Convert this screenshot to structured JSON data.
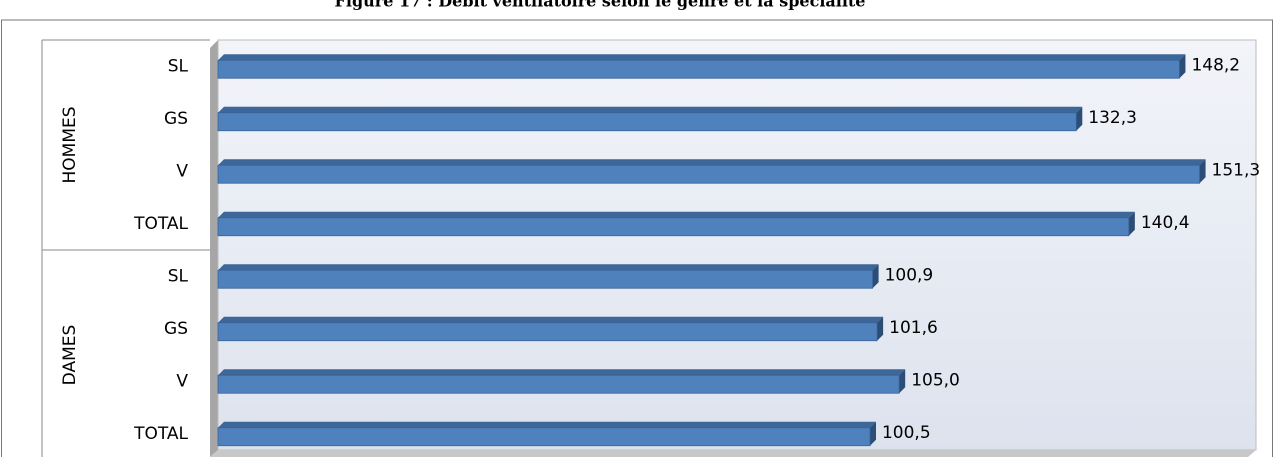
{
  "chart_data": {
    "type": "bar",
    "title": "Figure 17 : Débit ventilatoire selon le genre et la spécialité",
    "group_labels": [
      "HOMMES",
      "DAMES"
    ],
    "categories": [
      "SL",
      "GS",
      "V",
      "TOTAL",
      "SL",
      "GS",
      "V",
      "TOTAL"
    ],
    "values": [
      148.2,
      132.3,
      151.3,
      140.4,
      100.9,
      101.6,
      105.0,
      100.5
    ],
    "value_labels": [
      "148,2",
      "132,3",
      "151,3",
      "140,4",
      "100,9",
      "101,6",
      "105,0",
      "100,5"
    ],
    "color": "#4f81bd",
    "xlim": [
      0,
      160
    ]
  }
}
